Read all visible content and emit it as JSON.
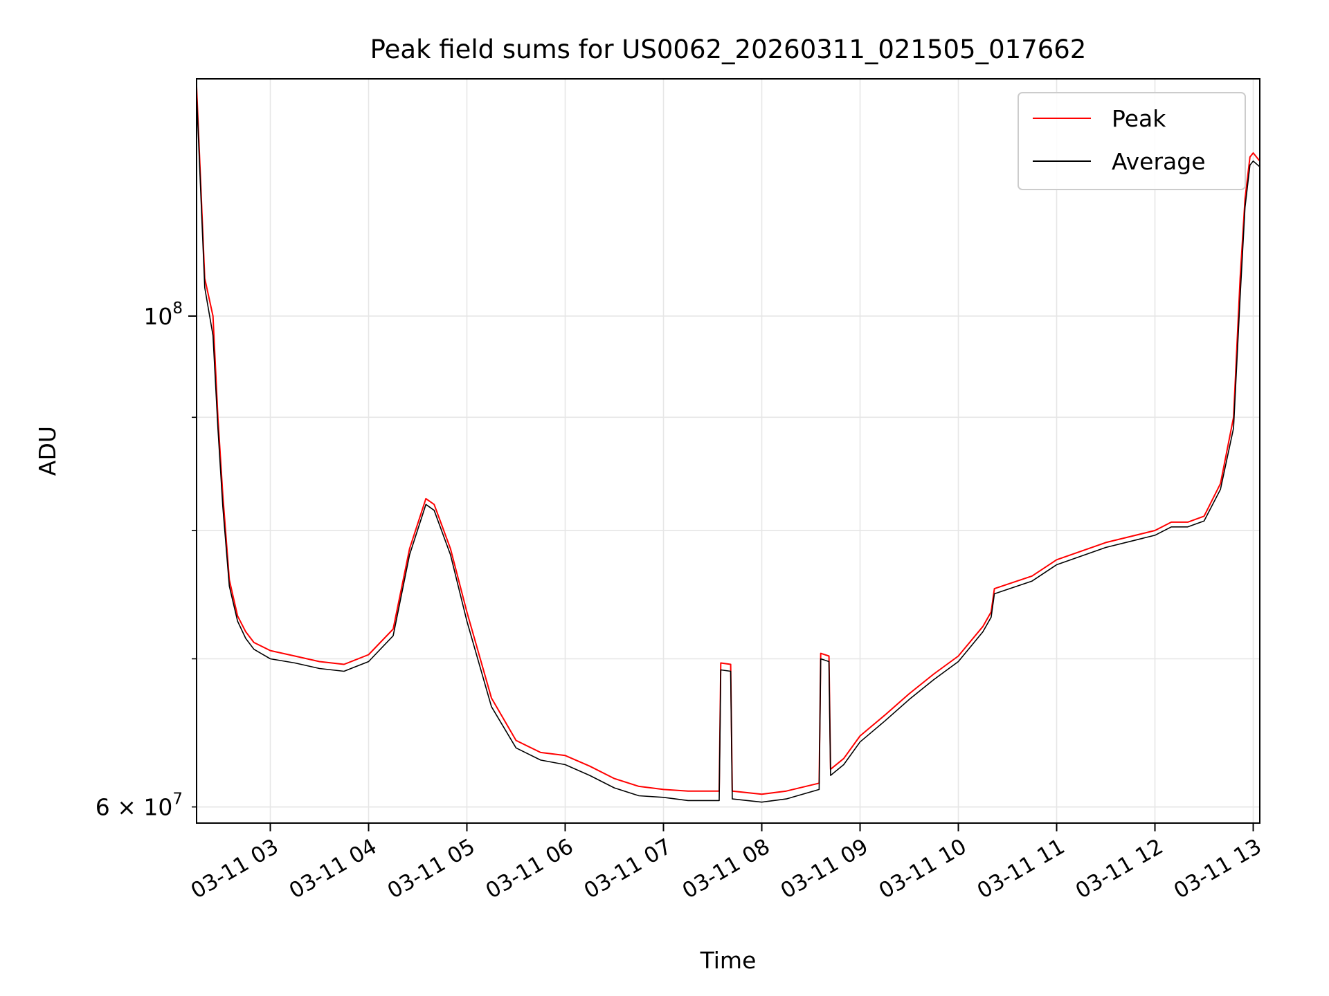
{
  "chart_data": {
    "type": "line",
    "title": "Peak field sums for US0062_20260311_021505_017662",
    "xlabel": "Time",
    "ylabel": "ADU",
    "y_scale": "log",
    "ylim": [
      59000000,
      128000000
    ],
    "xlim": [
      "03-11 02:15",
      "03-11 13:04"
    ],
    "grid": true,
    "legend_position": "top-right",
    "x_ticks": [
      "03-11 03",
      "03-11 04",
      "03-11 05",
      "03-11 06",
      "03-11 07",
      "03-11 08",
      "03-11 09",
      "03-11 10",
      "03-11 11",
      "03-11 12",
      "03-11 13"
    ],
    "y_major_tick": {
      "value": 100000000,
      "mantissa": "",
      "base": "10",
      "exp": "8"
    },
    "y_minor_labeled_tick": {
      "value": 60000000,
      "mantissa": "6 × ",
      "base": "10",
      "exp": "7"
    },
    "y_minor_ticks": [
      60000000,
      70000000,
      80000000,
      90000000
    ],
    "series": [
      {
        "name": "Peak",
        "color": "#ff0000",
        "x": [
          "03-11 02:15",
          "03-11 02:20",
          "03-11 02:25",
          "03-11 02:28",
          "03-11 02:31",
          "03-11 02:35",
          "03-11 02:40",
          "03-11 02:45",
          "03-11 02:50",
          "03-11 03:00",
          "03-11 03:15",
          "03-11 03:30",
          "03-11 03:45",
          "03-11 04:00",
          "03-11 04:15",
          "03-11 04:25",
          "03-11 04:35",
          "03-11 04:40",
          "03-11 04:50",
          "03-11 05:00",
          "03-11 05:15",
          "03-11 05:30",
          "03-11 05:45",
          "03-11 06:00",
          "03-11 06:15",
          "03-11 06:30",
          "03-11 06:45",
          "03-11 07:00",
          "03-11 07:15",
          "03-11 07:34",
          "03-11 07:35",
          "03-11 07:41",
          "03-11 07:42",
          "03-11 08:00",
          "03-11 08:15",
          "03-11 08:35",
          "03-11 08:36",
          "03-11 08:41",
          "03-11 08:42",
          "03-11 08:50",
          "03-11 09:00",
          "03-11 09:15",
          "03-11 09:30",
          "03-11 09:45",
          "03-11 10:00",
          "03-11 10:15",
          "03-11 10:20",
          "03-11 10:22",
          "03-11 10:45",
          "03-11 11:00",
          "03-11 11:30",
          "03-11 12:00",
          "03-11 12:10",
          "03-11 12:20",
          "03-11 12:30",
          "03-11 12:40",
          "03-11 12:48",
          "03-11 12:52",
          "03-11 12:55",
          "03-11 12:58",
          "03-11 13:00",
          "03-11 13:04"
        ],
        "values": [
          127000000,
          104000000,
          100000000,
          90000000,
          83000000,
          76000000,
          73200000,
          72000000,
          71200000,
          70600000,
          70200000,
          69800000,
          69600000,
          70300000,
          72200000,
          78500000,
          82700000,
          82200000,
          78500000,
          73500000,
          67200000,
          64300000,
          63500000,
          63300000,
          62600000,
          61800000,
          61300000,
          61100000,
          61000000,
          61000000,
          69700000,
          69600000,
          61000000,
          60800000,
          61000000,
          61500000,
          70400000,
          70200000,
          62400000,
          63100000,
          64600000,
          66000000,
          67500000,
          68900000,
          70200000,
          72400000,
          73500000,
          75300000,
          76300000,
          77600000,
          79000000,
          80000000,
          80700000,
          80700000,
          81200000,
          84000000,
          90000000,
          104000000,
          113000000,
          118000000,
          118500000,
          117500000
        ]
      },
      {
        "name": "Average",
        "color": "#000000",
        "x": [
          "03-11 02:15",
          "03-11 02:20",
          "03-11 02:25",
          "03-11 02:28",
          "03-11 02:31",
          "03-11 02:35",
          "03-11 02:40",
          "03-11 02:45",
          "03-11 02:50",
          "03-11 03:00",
          "03-11 03:15",
          "03-11 03:30",
          "03-11 03:45",
          "03-11 04:00",
          "03-11 04:15",
          "03-11 04:25",
          "03-11 04:35",
          "03-11 04:40",
          "03-11 04:50",
          "03-11 05:00",
          "03-11 05:15",
          "03-11 05:30",
          "03-11 05:45",
          "03-11 06:00",
          "03-11 06:15",
          "03-11 06:30",
          "03-11 06:45",
          "03-11 07:00",
          "03-11 07:15",
          "03-11 07:34",
          "03-11 07:35",
          "03-11 07:41",
          "03-11 07:42",
          "03-11 08:00",
          "03-11 08:15",
          "03-11 08:35",
          "03-11 08:36",
          "03-11 08:41",
          "03-11 08:42",
          "03-11 08:50",
          "03-11 09:00",
          "03-11 09:15",
          "03-11 09:30",
          "03-11 09:45",
          "03-11 10:00",
          "03-11 10:15",
          "03-11 10:20",
          "03-11 10:22",
          "03-11 10:45",
          "03-11 11:00",
          "03-11 11:30",
          "03-11 12:00",
          "03-11 12:10",
          "03-11 12:20",
          "03-11 12:30",
          "03-11 12:40",
          "03-11 12:48",
          "03-11 12:52",
          "03-11 12:55",
          "03-11 12:58",
          "03-11 13:00",
          "03-11 13:04"
        ],
        "values": [
          126000000,
          103000000,
          98000000,
          89000000,
          82000000,
          75500000,
          72800000,
          71500000,
          70700000,
          70000000,
          69700000,
          69300000,
          69100000,
          69800000,
          71700000,
          78000000,
          82200000,
          81700000,
          78000000,
          72800000,
          66600000,
          63800000,
          63000000,
          62700000,
          62000000,
          61200000,
          60700000,
          60600000,
          60400000,
          60400000,
          69200000,
          69100000,
          60500000,
          60300000,
          60500000,
          61100000,
          70000000,
          69800000,
          62000000,
          62700000,
          64200000,
          65600000,
          67100000,
          68500000,
          69800000,
          72000000,
          73100000,
          74900000,
          75900000,
          77200000,
          78600000,
          79600000,
          80300000,
          80300000,
          80800000,
          83500000,
          89000000,
          102000000,
          112000000,
          117000000,
          117500000,
          116800000
        ]
      }
    ]
  }
}
